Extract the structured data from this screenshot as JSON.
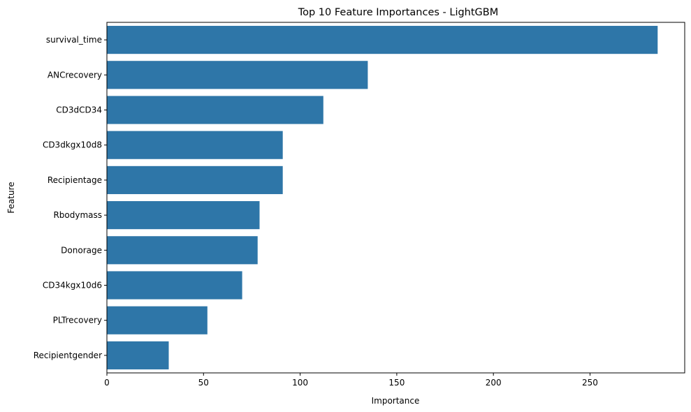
{
  "chart_data": {
    "type": "bar",
    "orientation": "horizontal",
    "title": "Top 10 Feature Importances - LightGBM",
    "xlabel": "Importance",
    "ylabel": "Feature",
    "categories": [
      "survival_time",
      "ANCrecovery",
      "CD3dCD34",
      "CD3dkgx10d8",
      "Recipientage",
      "Rbodymass",
      "Donorage",
      "CD34kgx10d6",
      "PLTrecovery",
      "Recipientgender"
    ],
    "values": [
      285,
      135,
      112,
      91,
      91,
      79,
      78,
      70,
      52,
      32
    ],
    "xlim": [
      0,
      299
    ],
    "xticks": [
      0,
      50,
      100,
      150,
      200,
      250
    ],
    "xtick_labels": [
      "0",
      "50",
      "100",
      "150",
      "200",
      "250"
    ],
    "grid": false,
    "bar_color": "#2e76a8"
  }
}
